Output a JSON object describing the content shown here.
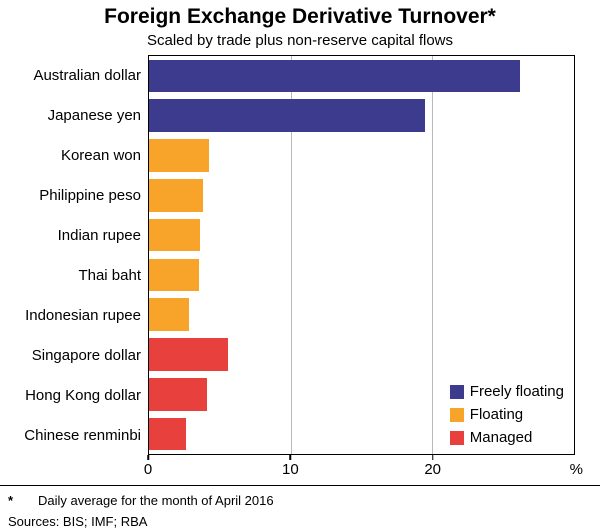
{
  "chart_data": {
    "type": "bar",
    "orientation": "horizontal",
    "title": "Foreign Exchange Derivative Turnover*",
    "subtitle": "Scaled by trade plus non-reserve capital flows",
    "unit": "%",
    "xlim": [
      0,
      30
    ],
    "xticks": [
      0,
      10,
      20
    ],
    "grid": "vertical gridlines at 10 and 20",
    "legend_position": "inside bottom-right",
    "categories": [
      "Australian dollar",
      "Japanese yen",
      "Korean won",
      "Philippine peso",
      "Indian rupee",
      "Thai baht",
      "Indonesian rupee",
      "Singapore dollar",
      "Hong Kong dollar",
      "Chinese renminbi"
    ],
    "values": [
      26.2,
      19.5,
      4.2,
      3.8,
      3.6,
      3.5,
      2.8,
      5.6,
      4.1,
      2.6
    ],
    "groups": [
      "freely_floating",
      "freely_floating",
      "floating",
      "floating",
      "floating",
      "floating",
      "floating",
      "managed",
      "managed",
      "managed"
    ],
    "legend": [
      {
        "key": "freely_floating",
        "label": "Freely floating",
        "color": "#3D3B8E"
      },
      {
        "key": "floating",
        "label": "Floating",
        "color": "#F8A32A"
      },
      {
        "key": "managed",
        "label": "Managed",
        "color": "#E8403C"
      }
    ]
  },
  "footnote": {
    "marker": "*",
    "text": "Daily average for the month of April 2016"
  },
  "sources": "Sources: BIS; IMF; RBA"
}
